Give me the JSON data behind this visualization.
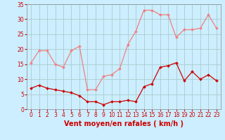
{
  "hours": [
    0,
    1,
    2,
    3,
    4,
    5,
    6,
    7,
    8,
    9,
    10,
    11,
    12,
    13,
    14,
    15,
    16,
    17,
    18,
    19,
    20,
    21,
    22,
    23
  ],
  "rafales": [
    15.5,
    19.5,
    19.5,
    15.0,
    14.0,
    19.5,
    21.0,
    6.5,
    6.5,
    11.0,
    11.5,
    13.5,
    21.5,
    26.0,
    33.0,
    33.0,
    31.5,
    31.5,
    24.0,
    26.5,
    26.5,
    27.0,
    31.5,
    27.0
  ],
  "moyen": [
    7.0,
    8.0,
    7.0,
    6.5,
    6.0,
    5.5,
    4.5,
    2.5,
    2.5,
    1.5,
    2.5,
    2.5,
    3.0,
    2.5,
    7.5,
    8.5,
    14.0,
    14.5,
    15.5,
    9.5,
    12.5,
    10.0,
    11.5,
    9.5
  ],
  "color_rafales": "#f08080",
  "color_moyen": "#cc0000",
  "bg_color": "#cceeff",
  "grid_color": "#aacccc",
  "text_color": "#cc0000",
  "xlabel": "Vent moyen/en rafales ( km/h )",
  "ylim": [
    0,
    35
  ],
  "yticks": [
    0,
    5,
    10,
    15,
    20,
    25,
    30,
    35
  ],
  "xlim": [
    -0.5,
    23.5
  ],
  "tick_fontsize": 5.5,
  "xlabel_fontsize": 7,
  "marker_size": 2.0,
  "linewidth": 0.9
}
